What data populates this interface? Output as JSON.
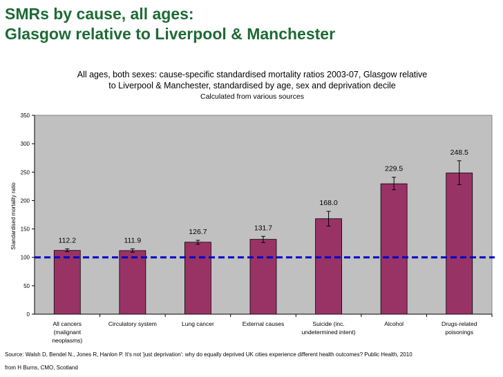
{
  "slide": {
    "title_line1": "SMRs by cause, all ages:",
    "title_line2": "Glasgow relative to Liverpool & Manchester"
  },
  "chart_data": {
    "type": "bar",
    "title_line1": "All ages, both sexes: cause-specific standardised mortality ratios 2003-07, Glasgow relative",
    "title_line2": "to Liverpool & Manchester, standardised by age, sex and deprivation decile",
    "subtitle": "Calculated from various sources",
    "ylabel": "Standardised mortality ratio",
    "xlabel": "",
    "ylim": [
      0,
      350
    ],
    "yticks": [
      0,
      50,
      100,
      150,
      200,
      250,
      300,
      350
    ],
    "reference_line": 100,
    "grid": false,
    "categories": [
      [
        "All cancers",
        "(malignant",
        "neoplasms)"
      ],
      [
        "Circulatory system"
      ],
      [
        "Lung cancer"
      ],
      [
        "External causes"
      ],
      [
        "Suicide (inc.",
        "undetermined intent)"
      ],
      [
        "Alcohol"
      ],
      [
        "Drugs-related",
        "poisonings"
      ]
    ],
    "values": [
      112.2,
      111.9,
      126.7,
      131.7,
      168.0,
      229.5,
      248.5
    ],
    "value_labels": [
      "112.2",
      "111.9",
      "126.7",
      "131.7",
      "168.0",
      "229.5",
      "248.5"
    ],
    "error_bars": [
      [
        110,
        115
      ],
      [
        109,
        115
      ],
      [
        123,
        130
      ],
      [
        126,
        137
      ],
      [
        155,
        181
      ],
      [
        219,
        241
      ],
      [
        228,
        270
      ]
    ],
    "colors": {
      "bar": "#993366",
      "plot_background": "#c0c0c0",
      "reference_line": "#0000cc",
      "title": "#1e6b35"
    }
  },
  "footer": {
    "source": "Source:  Walsh D, Bendel N., Jones R, Hanlon P. It's not 'just deprivation': why do equally deprived UK cities experience different health outcomes? Public Health, 2010",
    "credit": "from H Burns, CMO, Scotland"
  }
}
